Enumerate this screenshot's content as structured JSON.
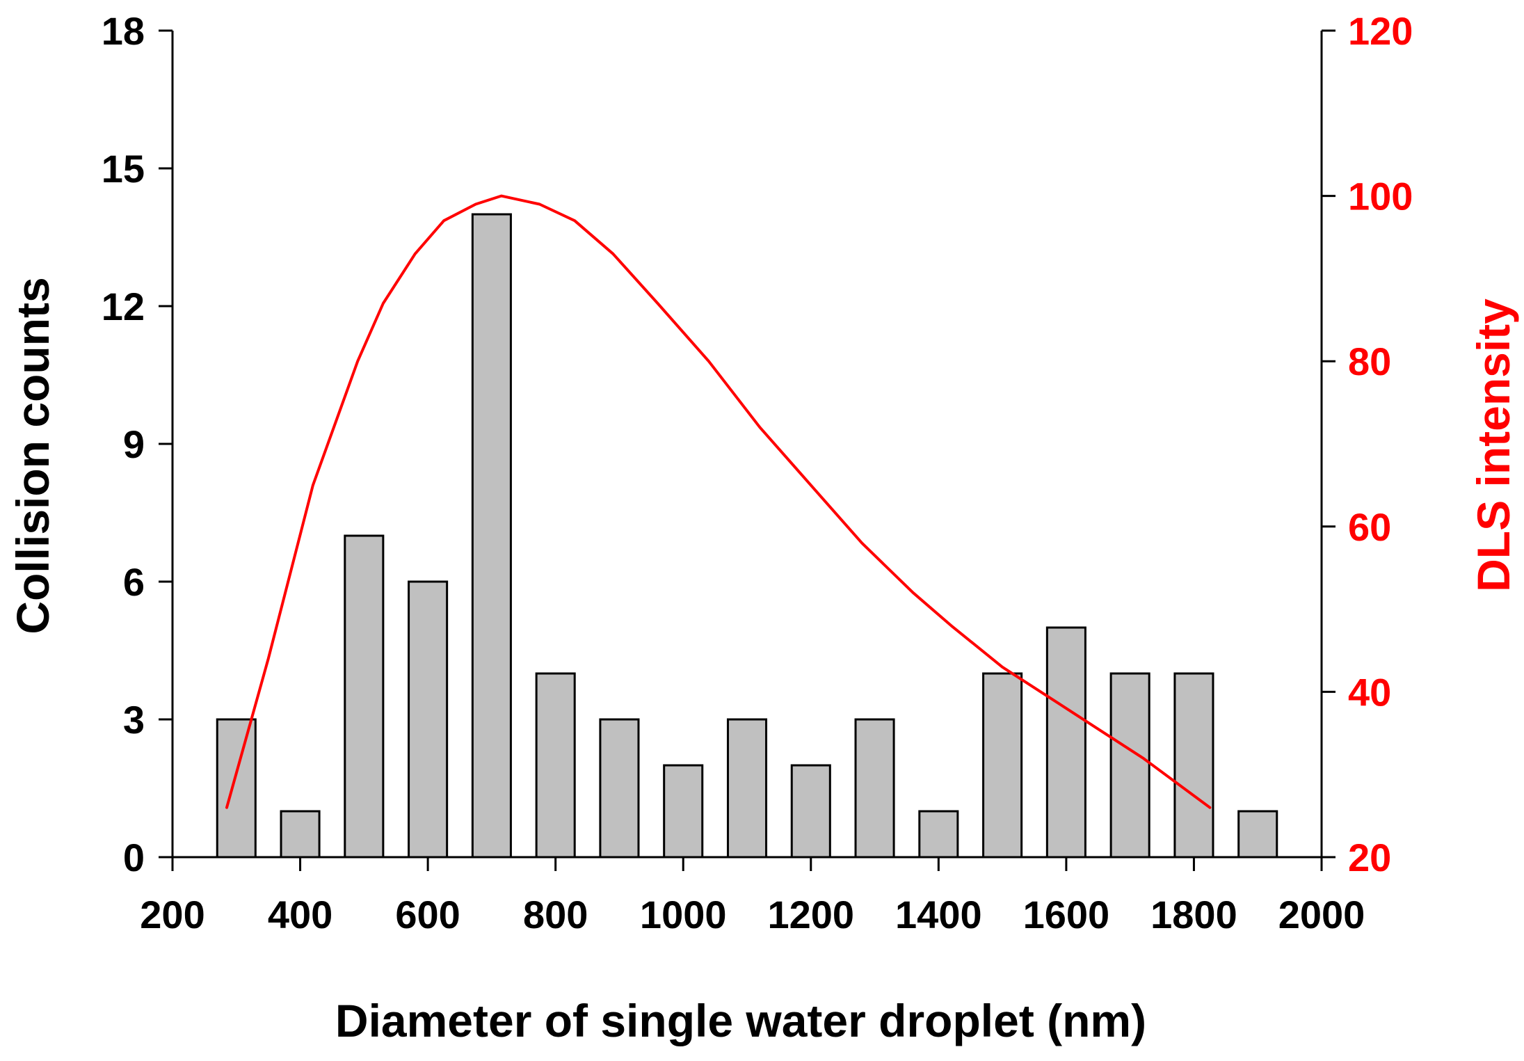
{
  "chart_data": {
    "type": "bar+line",
    "xlabel": "Diameter of single water droplet (nm)",
    "ylabel_left": "Collision counts",
    "ylabel_right": "DLS intensity",
    "xlim": [
      200,
      2000
    ],
    "ylim_left": [
      0,
      18
    ],
    "ylim_right": [
      20,
      120
    ],
    "x_ticks": [
      200,
      400,
      600,
      800,
      1000,
      1200,
      1400,
      1600,
      1800,
      2000
    ],
    "y_left_ticks": [
      0,
      3,
      6,
      9,
      12,
      15,
      18
    ],
    "y_right_ticks": [
      20,
      40,
      60,
      80,
      100,
      120
    ],
    "bar_width": 60,
    "bars": {
      "name": "Collision counts",
      "x": [
        300,
        400,
        500,
        600,
        700,
        800,
        900,
        1000,
        1100,
        1200,
        1300,
        1400,
        1500,
        1600,
        1700,
        1800,
        1900
      ],
      "values": [
        3,
        1,
        7,
        6,
        14,
        4,
        3,
        2,
        3,
        2,
        3,
        1,
        4,
        5,
        4,
        4,
        1
      ]
    },
    "line": {
      "name": "DLS intensity",
      "x": [
        285,
        350,
        420,
        490,
        530,
        580,
        625,
        675,
        715,
        775,
        830,
        890,
        960,
        1040,
        1120,
        1200,
        1280,
        1360,
        1420,
        1500,
        1560,
        1640,
        1720,
        1825
      ],
      "values": [
        26,
        44,
        65,
        80,
        87,
        93,
        97,
        99,
        100,
        99,
        97,
        93,
        87,
        80,
        72,
        65,
        58,
        52,
        48,
        43,
        40,
        36,
        32,
        26
      ]
    },
    "colors": {
      "bar_fill": "#c0c0c0",
      "bar_stroke": "#000000",
      "line": "#ff0000",
      "left_axis": "#000000",
      "right_axis": "#ff0000"
    }
  }
}
